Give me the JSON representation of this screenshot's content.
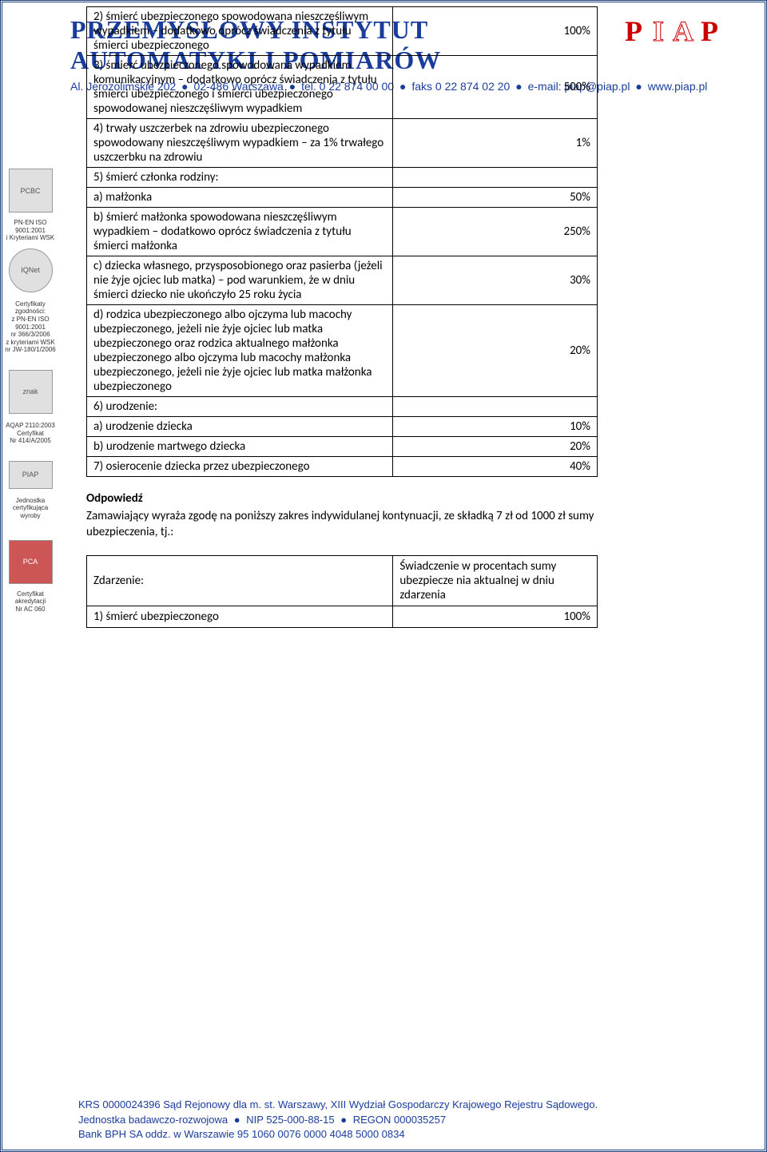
{
  "header": {
    "org_line1": "PRZEMYSŁOWY INSTYTUT",
    "org_line2": "AUTOMATYKI I POMIARÓW",
    "address": "Al. Jerozolimskie 202",
    "city": "02-486 Warszawa",
    "tel": "tel. 0 22 874 00 00",
    "fax": "faks 0 22 874 02 20",
    "email": "e-mail: piap@piap.pl",
    "www": "www.piap.pl"
  },
  "sidebar": {
    "iso": "PN-EN ISO 9001:2001\ni Kryteriami WSK",
    "cert_zgod": "Certyfikaty zgodności:\nz PN-EN ISO 9001:2001\nnr 366/3/2006\nz kryteriami WSK\nnr JW-180/1/2006",
    "aqap": "AQAP 2110:2003\nCertyfikat\nNr 414/A/2005",
    "jednostka": "Jednostka\ncertyfikująca\nwyroby",
    "akredytacja": "Certyfikat\nakredytacji\nNr AC 060",
    "badge_pcbc": "PCBC",
    "badge_iqnet": "IQNet",
    "badge_znak": "znak",
    "badge_piap": "PIAP",
    "badge_pca": "PCA"
  },
  "table": {
    "rows": [
      {
        "desc": "2) śmierć ubezpieczonego spowodowana nieszczęśliwym wypadkiem – dodatkowo oprócz świadczenia z tytułu śmierci ubezpieczonego",
        "pct": "100%"
      },
      {
        "desc": "3) śmierć ubezpieczonego spowodowana wypadkiem komunikacyjnym – dodatkowo oprócz świadczenia z tytułu śmierci ubezpieczonego i śmierci ubezpieczonego spowodowanej nieszczęśliwym wypadkiem",
        "pct": "500%"
      },
      {
        "desc": "4) trwały uszczerbek na zdrowiu ubezpieczonego spowodowany nieszczęśliwym wypadkiem – za 1% trwałego uszczerbku na zdrowiu",
        "pct": "1%"
      },
      {
        "desc": "5) śmierć członka rodziny:",
        "pct": ""
      },
      {
        "desc": "a) małżonka",
        "pct": "50%"
      },
      {
        "desc": "b) śmierć małżonka spowodowana nieszczęśliwym wypadkiem – dodatkowo oprócz świadczenia z tytułu śmierci małżonka",
        "pct": "250%"
      },
      {
        "desc": "c) dziecka własnego, przysposobionego oraz pasierba (jeżeli nie żyje ojciec lub matka) – pod warunkiem, że w dniu śmierci dziecko nie ukończyło 25 roku życia",
        "pct": "30%"
      },
      {
        "desc": "d) rodzica ubezpieczonego albo ojczyma lub macochy ubezpieczonego, jeżeli nie żyje ojciec lub matka ubezpieczonego oraz rodzica aktualnego małżonka ubezpieczonego albo ojczyma lub macochy małżonka ubezpieczonego, jeżeli nie żyje ojciec lub matka małżonka ubezpieczonego",
        "pct": "20%"
      },
      {
        "desc": "6) urodzenie:",
        "pct": ""
      },
      {
        "desc": "a) urodzenie dziecka",
        "pct": "10%"
      },
      {
        "desc": "b) urodzenie martwego dziecka",
        "pct": "20%"
      },
      {
        "desc": "7) osierocenie dziecka przez ubezpieczonego",
        "pct": "40%"
      }
    ]
  },
  "answer": {
    "title": "Odpowiedź",
    "text": "Zamawiający wyraża zgodę na poniższy zakres indywidulanej kontynuacji, ze składką 7 zł od 1000 zł sumy ubezpieczenia, tj.:"
  },
  "table2": {
    "hdr_left": "Zdarzenie:",
    "hdr_right": "Świadczenie w procentach sumy ubezpiecze nia aktualnej w dniu zdarzenia",
    "row1_desc": "1) śmierć ubezpieczonego",
    "row1_pct": "100%"
  },
  "footer": {
    "line1a": "KRS 0000024396 Sąd Rejonowy dla m. st. Warszawy, XIII Wydział Gospodarczy Krajowego Rejestru Sądowego.",
    "line2a": "Jednostka badawczo-rozwojowa",
    "line2b": "NIP 525-000-88-15",
    "line2c": "REGON 000035257",
    "line3": "Bank BPH SA oddz. w Warszawie  95 1060 0076 0000 4048 5000 0834"
  },
  "colors": {
    "brand_blue": "#1a3d9c",
    "brand_red": "#cc0000",
    "border": "#1a3d7a",
    "text": "#000000"
  }
}
